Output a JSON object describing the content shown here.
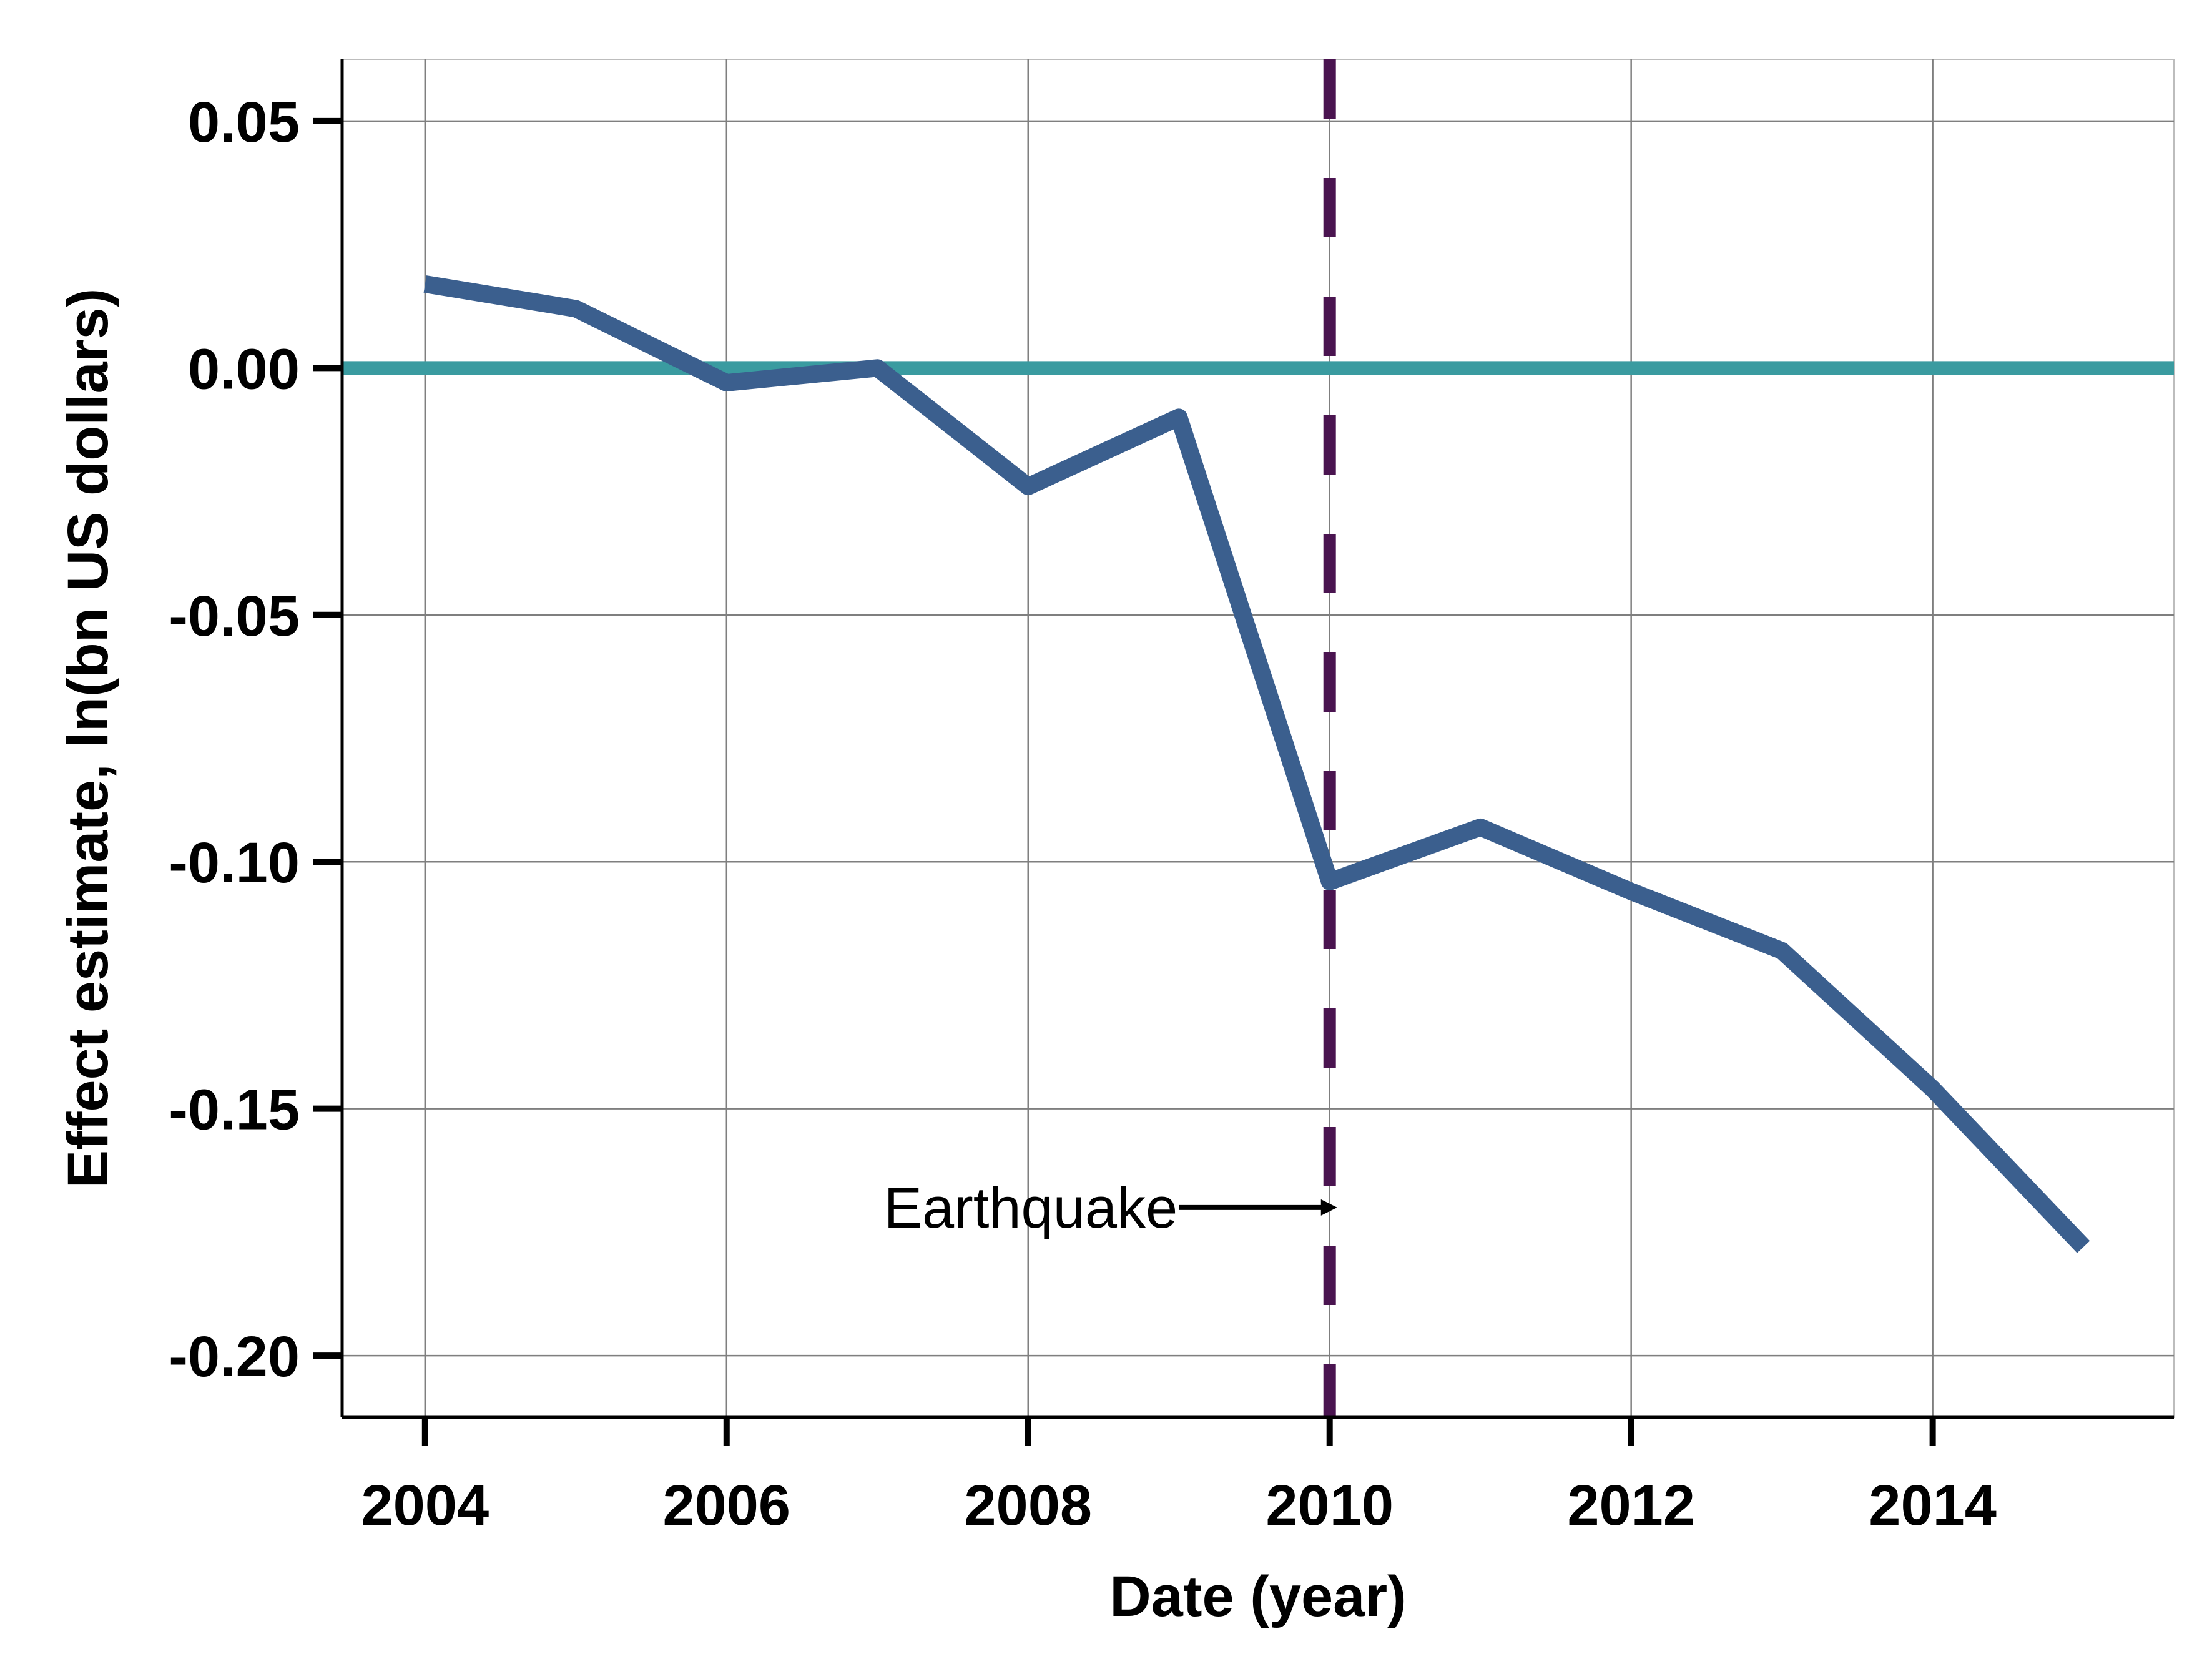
{
  "chart_data": {
    "type": "line",
    "title": "",
    "xlabel": "Date (year)",
    "ylabel": "Effect estimate, ln(bn US dollars)",
    "xlim": [
      2003.45,
      2015.6
    ],
    "ylim": [
      -0.2125,
      0.0625
    ],
    "x_ticks": [
      2004,
      2006,
      2008,
      2010,
      2012,
      2014
    ],
    "x_tick_labels": [
      "2004",
      "2006",
      "2008",
      "2010",
      "2012",
      "2014"
    ],
    "y_ticks": [
      0.05,
      0.0,
      -0.05,
      -0.1,
      -0.15,
      -0.2
    ],
    "y_tick_labels": [
      "0.05",
      "0.00",
      "-0.05",
      "-0.10",
      "-0.15",
      "-0.20"
    ],
    "grid": true,
    "legend": "none",
    "series": [
      {
        "x": [
          2004,
          2005,
          2006,
          2007,
          2008,
          2009,
          2010,
          2011,
          2012,
          2013,
          2014,
          2015
        ],
        "values": [
          0.017,
          0.012,
          -0.003,
          0.0,
          -0.024,
          -0.01,
          -0.104,
          -0.093,
          -0.106,
          -0.118,
          -0.146,
          -0.178
        ],
        "color": "#3B5F8E"
      }
    ],
    "reference_lines": {
      "horizontal_y": 0.0,
      "horizontal_color": "#3A9BA0",
      "vertical_x": 2010,
      "vertical_color": "#4A1450",
      "vertical_style": "dashed"
    },
    "annotations": [
      {
        "text": "Earthquake",
        "arrow_from_x": 2009.0,
        "arrow_to_x": 2010.05,
        "y": -0.17
      }
    ]
  },
  "colors": {
    "series_line": "#3B5F8E",
    "zero_line": "#3A9BA0",
    "event_line": "#4A1450",
    "grid": "#7F7F7F",
    "axis": "#000000",
    "background": "#FFFFFF"
  }
}
